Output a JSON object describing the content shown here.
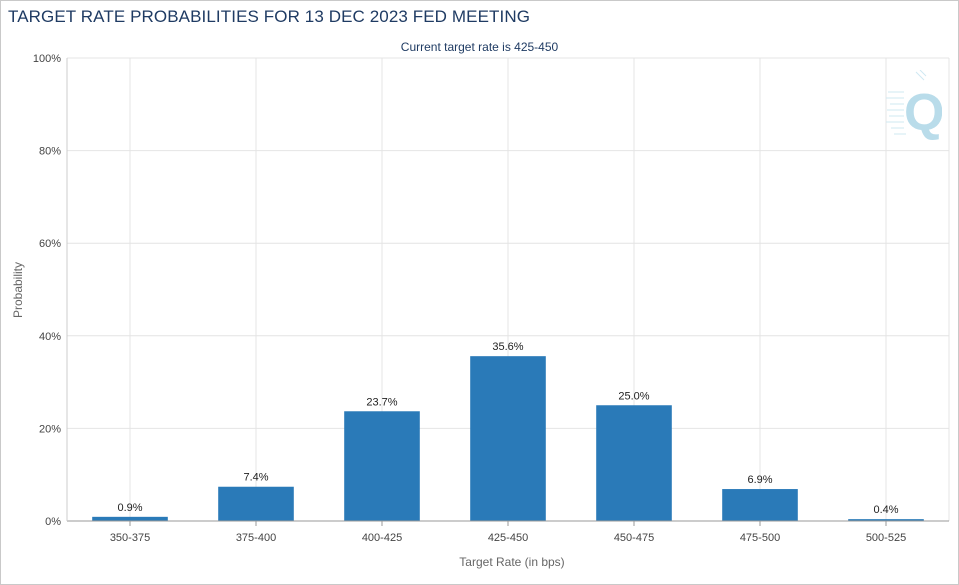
{
  "header": {
    "title": "TARGET RATE PROBABILITIES FOR 13 DEC 2023 FED MEETING",
    "subtitle": "Current target rate is 425-450"
  },
  "logo": {
    "icon": "q-logo-icon",
    "text": "Q",
    "color": "#b9dcea"
  },
  "chart_data": {
    "type": "bar",
    "title": "TARGET RATE PROBABILITIES FOR 13 DEC 2023 FED MEETING",
    "subtitle": "Current target rate is 425-450",
    "xlabel": "Target Rate (in bps)",
    "ylabel": "Probability",
    "categories": [
      "350-375",
      "375-400",
      "400-425",
      "425-450",
      "450-475",
      "475-500",
      "500-525"
    ],
    "values": [
      0.9,
      7.4,
      23.7,
      35.6,
      25.0,
      6.9,
      0.4
    ],
    "data_labels": [
      "0.9%",
      "7.4%",
      "23.7%",
      "35.6%",
      "25.0%",
      "6.9%",
      "0.4%"
    ],
    "ylim": [
      0,
      100
    ],
    "yticks": [
      0,
      20,
      40,
      60,
      80,
      100
    ],
    "ytick_labels": [
      "0%",
      "20%",
      "40%",
      "60%",
      "80%",
      "100%"
    ],
    "grid": true,
    "bar_color": "#2a7ab8",
    "grid_color": "#e4e4e4",
    "legend": "none"
  }
}
